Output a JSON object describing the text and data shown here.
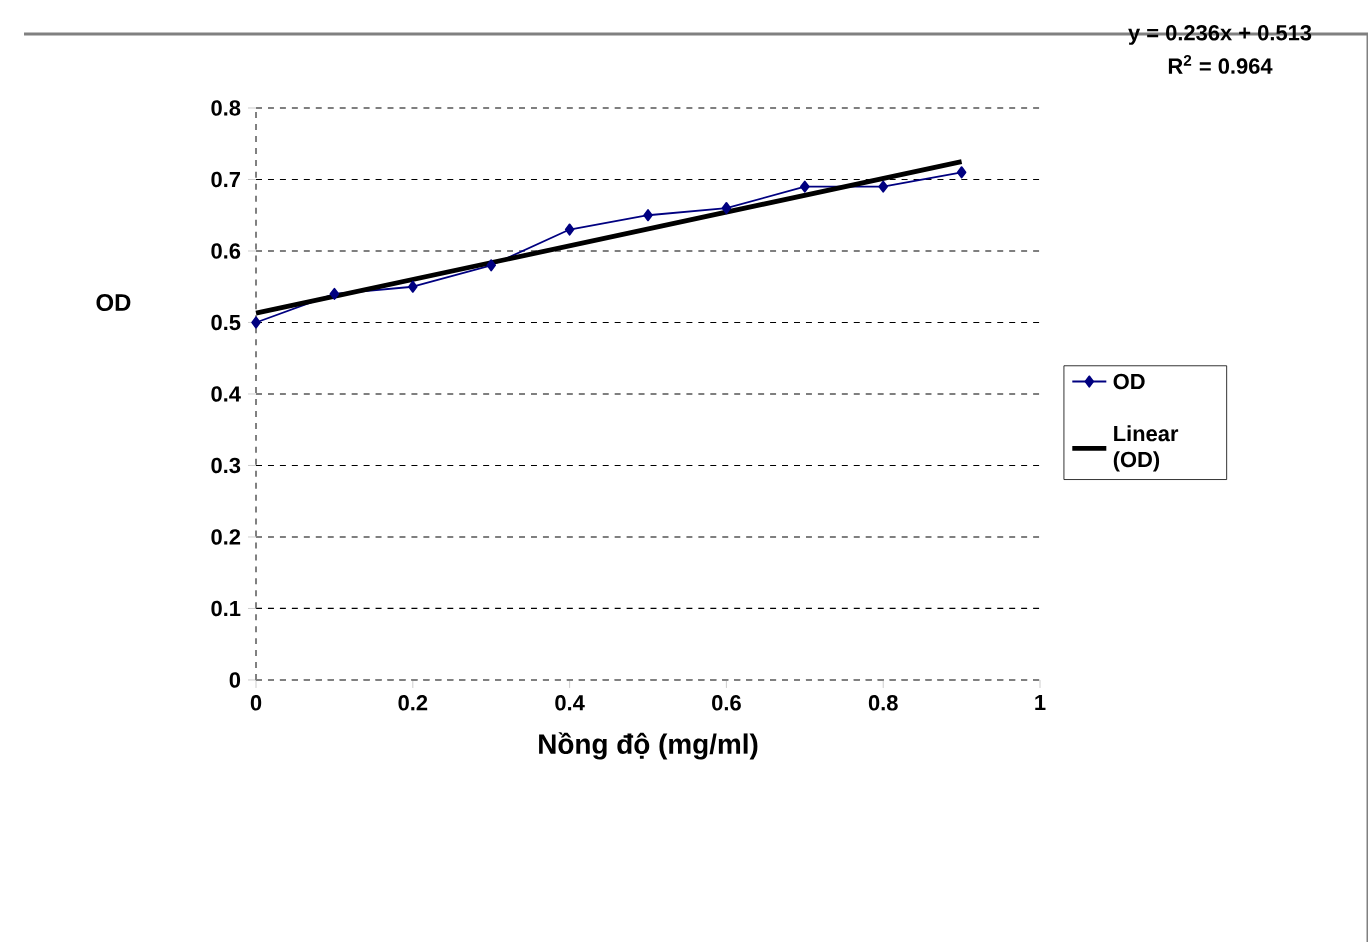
{
  "chart_data": {
    "type": "line",
    "xlabel": "Nồng độ (mg/ml)",
    "ylabel": "OD",
    "annotations": [
      "y = 0.236x + 0.513",
      "R$^{2}$ = 0.964"
    ],
    "x": [
      0,
      0.1,
      0.2,
      0.3,
      0.4,
      0.5,
      0.6,
      0.7,
      0.8,
      0.9
    ],
    "series": [
      {
        "name": "OD",
        "color": "#000080",
        "marker": "diamond",
        "values": [
          0.5,
          0.54,
          0.55,
          0.58,
          0.63,
          0.65,
          0.66,
          0.69,
          0.69,
          0.71
        ]
      },
      {
        "name": "Linear (OD)",
        "color": "#000000",
        "marker": "none",
        "x": [
          0,
          0.9
        ],
        "values": [
          0.513,
          0.725
        ]
      }
    ],
    "xlim": [
      0,
      1
    ],
    "xticks": [
      0,
      0.2,
      0.4,
      0.6,
      0.8,
      1
    ],
    "ylim": [
      0,
      0.8
    ],
    "yticks": [
      0,
      0.1,
      0.2,
      0.3,
      0.4,
      0.5,
      0.6,
      0.7,
      0.8
    ],
    "grid": "y",
    "legend": "right"
  }
}
